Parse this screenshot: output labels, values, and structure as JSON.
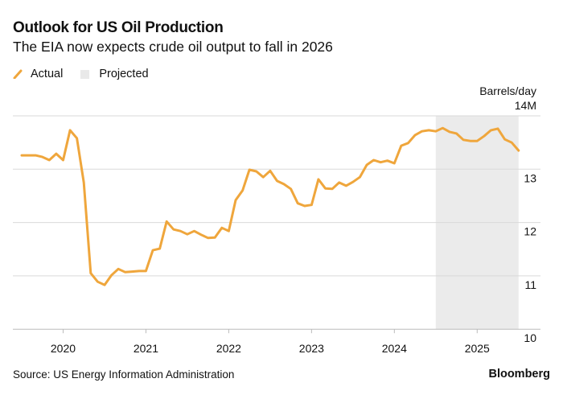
{
  "title": "Outlook for US Oil Production",
  "subtitle": "The EIA now expects crude oil output to fall in 2026",
  "legend": {
    "actual": "Actual",
    "projected": "Projected"
  },
  "source": "Source: US Energy Information Administration",
  "brand": "Bloomberg",
  "colors": {
    "line": "#EFA63C",
    "projected_shade": "#EBEBEB",
    "grid": "#D9D9D9"
  },
  "chart_data": {
    "type": "line",
    "title": "Outlook for US Oil Production",
    "ylabel": "Barrels/day",
    "ylim": [
      10,
      14
    ],
    "yticks": [
      {
        "value": 14,
        "label": "14M"
      },
      {
        "value": 13,
        "label": "13"
      },
      {
        "value": 12,
        "label": "12"
      },
      {
        "value": 11,
        "label": "11"
      },
      {
        "value": 10,
        "label": "10"
      }
    ],
    "xticks": [
      "2020",
      "2021",
      "2022",
      "2023",
      "2024",
      "2025"
    ],
    "x_start": "2019-07",
    "x_frequency": "monthly",
    "projected_range": [
      "2024-07",
      "2025-07"
    ],
    "grid": true,
    "legend_position": "top-left",
    "series": [
      {
        "name": "Actual",
        "values": [
          13.26,
          13.26,
          13.26,
          13.23,
          13.17,
          13.29,
          13.17,
          13.73,
          13.58,
          12.75,
          11.05,
          10.89,
          10.83,
          11.01,
          11.13,
          11.07,
          11.08,
          11.09,
          11.09,
          11.48,
          11.51,
          12.02,
          11.87,
          11.84,
          11.78,
          11.84,
          11.77,
          11.71,
          11.72,
          11.9,
          11.84,
          12.42,
          12.6,
          12.99,
          12.96,
          12.85,
          12.97,
          12.78,
          12.72,
          12.63,
          12.36,
          12.31,
          12.33,
          12.81,
          12.64,
          12.63,
          12.75,
          12.69,
          12.76,
          12.85,
          13.08,
          13.17,
          13.13,
          13.16,
          13.11,
          13.44,
          13.49,
          13.64,
          13.71,
          13.73,
          13.71,
          13.77,
          13.7,
          13.67,
          13.55,
          13.53,
          13.53,
          13.62,
          13.73,
          13.76,
          13.56,
          13.5,
          13.35
        ]
      }
    ]
  }
}
